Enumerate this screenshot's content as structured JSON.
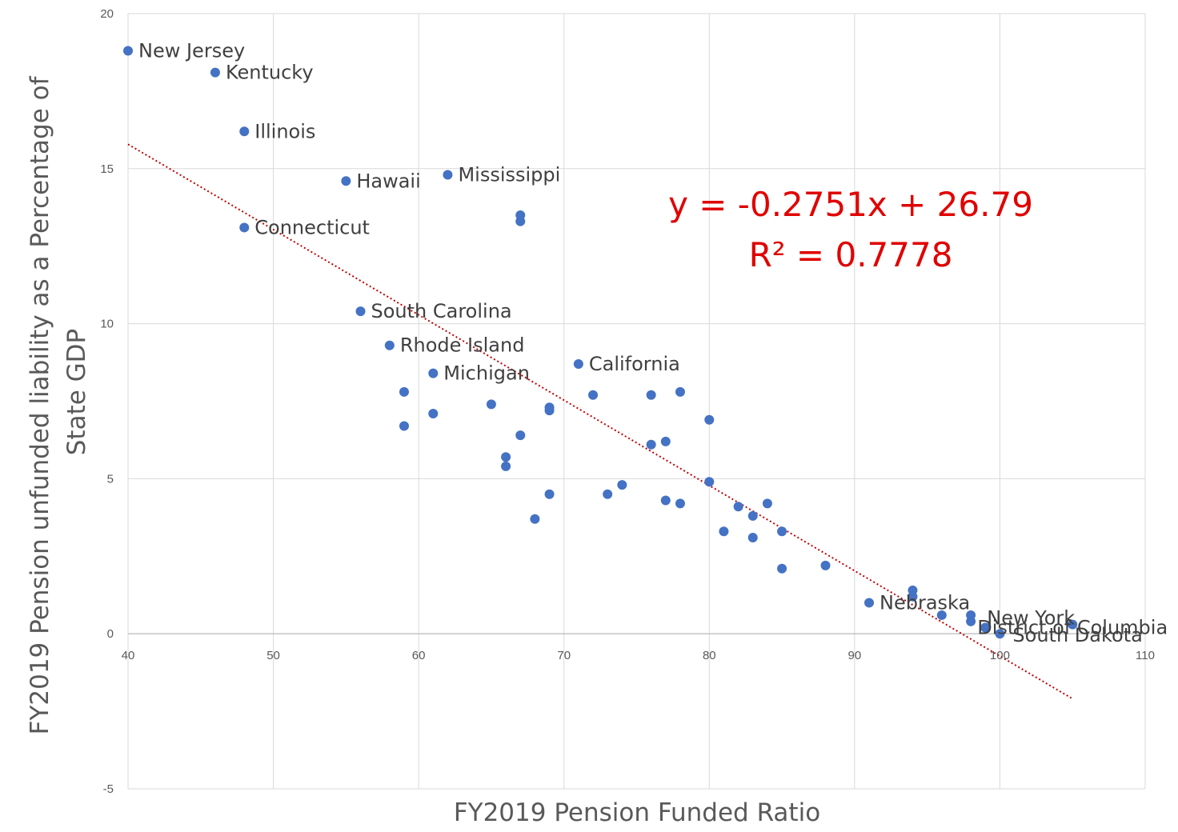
{
  "chart_data": {
    "type": "scatter",
    "xlabel": "FY2019 Pension Funded Ratio",
    "ylabel": "FY2019 Pension unfunded liability as a Percentage of State GDP",
    "xlim": [
      40,
      110
    ],
    "ylim": [
      -5,
      20
    ],
    "x_ticks": [
      40,
      50,
      60,
      70,
      80,
      90,
      100,
      110
    ],
    "y_ticks": [
      -5,
      0,
      5,
      10,
      15,
      20
    ],
    "grid": true,
    "point_color": "#4472c4",
    "trendline": {
      "type": "linear",
      "slope": -0.2751,
      "intercept": 26.79,
      "x_range": [
        40,
        105
      ],
      "color": "#c00000",
      "equation_text": "y = -0.2751x + 26.79",
      "r2_text": "R² = 0.7778",
      "annotation_color": "#e00000"
    },
    "points": [
      {
        "x": 40,
        "y": 18.8,
        "label": "New Jersey"
      },
      {
        "x": 46,
        "y": 18.1,
        "label": "Kentucky"
      },
      {
        "x": 48,
        "y": 16.2,
        "label": "Illinois"
      },
      {
        "x": 55,
        "y": 14.6,
        "label": "Hawaii"
      },
      {
        "x": 62,
        "y": 14.8,
        "label": "Mississippi"
      },
      {
        "x": 48,
        "y": 13.1,
        "label": "Connecticut"
      },
      {
        "x": 67,
        "y": 13.5,
        "label": ""
      },
      {
        "x": 67,
        "y": 13.3,
        "label": ""
      },
      {
        "x": 56,
        "y": 10.4,
        "label": "South Carolina"
      },
      {
        "x": 58,
        "y": 9.3,
        "label": "Rhode Island"
      },
      {
        "x": 61,
        "y": 8.4,
        "label": "Michigan"
      },
      {
        "x": 71,
        "y": 8.7,
        "label": "California"
      },
      {
        "x": 59,
        "y": 7.8,
        "label": ""
      },
      {
        "x": 59,
        "y": 6.7,
        "label": ""
      },
      {
        "x": 61,
        "y": 7.1,
        "label": ""
      },
      {
        "x": 65,
        "y": 7.4,
        "label": ""
      },
      {
        "x": 67,
        "y": 6.4,
        "label": ""
      },
      {
        "x": 66,
        "y": 5.7,
        "label": ""
      },
      {
        "x": 66,
        "y": 5.4,
        "label": ""
      },
      {
        "x": 69,
        "y": 7.3,
        "label": ""
      },
      {
        "x": 69,
        "y": 7.2,
        "label": ""
      },
      {
        "x": 72,
        "y": 7.7,
        "label": ""
      },
      {
        "x": 76,
        "y": 7.7,
        "label": ""
      },
      {
        "x": 78,
        "y": 7.8,
        "label": ""
      },
      {
        "x": 76,
        "y": 6.1,
        "label": ""
      },
      {
        "x": 77,
        "y": 6.2,
        "label": ""
      },
      {
        "x": 80,
        "y": 6.9,
        "label": ""
      },
      {
        "x": 80,
        "y": 4.9,
        "label": ""
      },
      {
        "x": 74,
        "y": 4.8,
        "label": ""
      },
      {
        "x": 73,
        "y": 4.5,
        "label": ""
      },
      {
        "x": 69,
        "y": 4.5,
        "label": ""
      },
      {
        "x": 68,
        "y": 3.7,
        "label": ""
      },
      {
        "x": 77,
        "y": 4.3,
        "label": ""
      },
      {
        "x": 78,
        "y": 4.2,
        "label": ""
      },
      {
        "x": 82,
        "y": 4.1,
        "label": ""
      },
      {
        "x": 84,
        "y": 4.2,
        "label": ""
      },
      {
        "x": 83,
        "y": 3.8,
        "label": ""
      },
      {
        "x": 81,
        "y": 3.3,
        "label": ""
      },
      {
        "x": 85,
        "y": 3.3,
        "label": ""
      },
      {
        "x": 83,
        "y": 3.1,
        "label": ""
      },
      {
        "x": 85,
        "y": 2.1,
        "label": ""
      },
      {
        "x": 88,
        "y": 2.2,
        "label": ""
      },
      {
        "x": 91,
        "y": 1.0,
        "label": "Nebraska"
      },
      {
        "x": 94,
        "y": 1.4,
        "label": ""
      },
      {
        "x": 94,
        "y": 1.2,
        "label": ""
      },
      {
        "x": 96,
        "y": 0.6,
        "label": ""
      },
      {
        "x": 98,
        "y": 0.6,
        "label": ""
      },
      {
        "x": 98,
        "y": 0.4,
        "label": ""
      },
      {
        "x": 99,
        "y": 0.2,
        "label": "New York"
      },
      {
        "x": 99,
        "y": 0.2,
        "label": "District of Columbia"
      },
      {
        "x": 100,
        "y": 0.0,
        "label": "South Dakota"
      },
      {
        "x": 105,
        "y": 0.3,
        "label": ""
      }
    ]
  }
}
